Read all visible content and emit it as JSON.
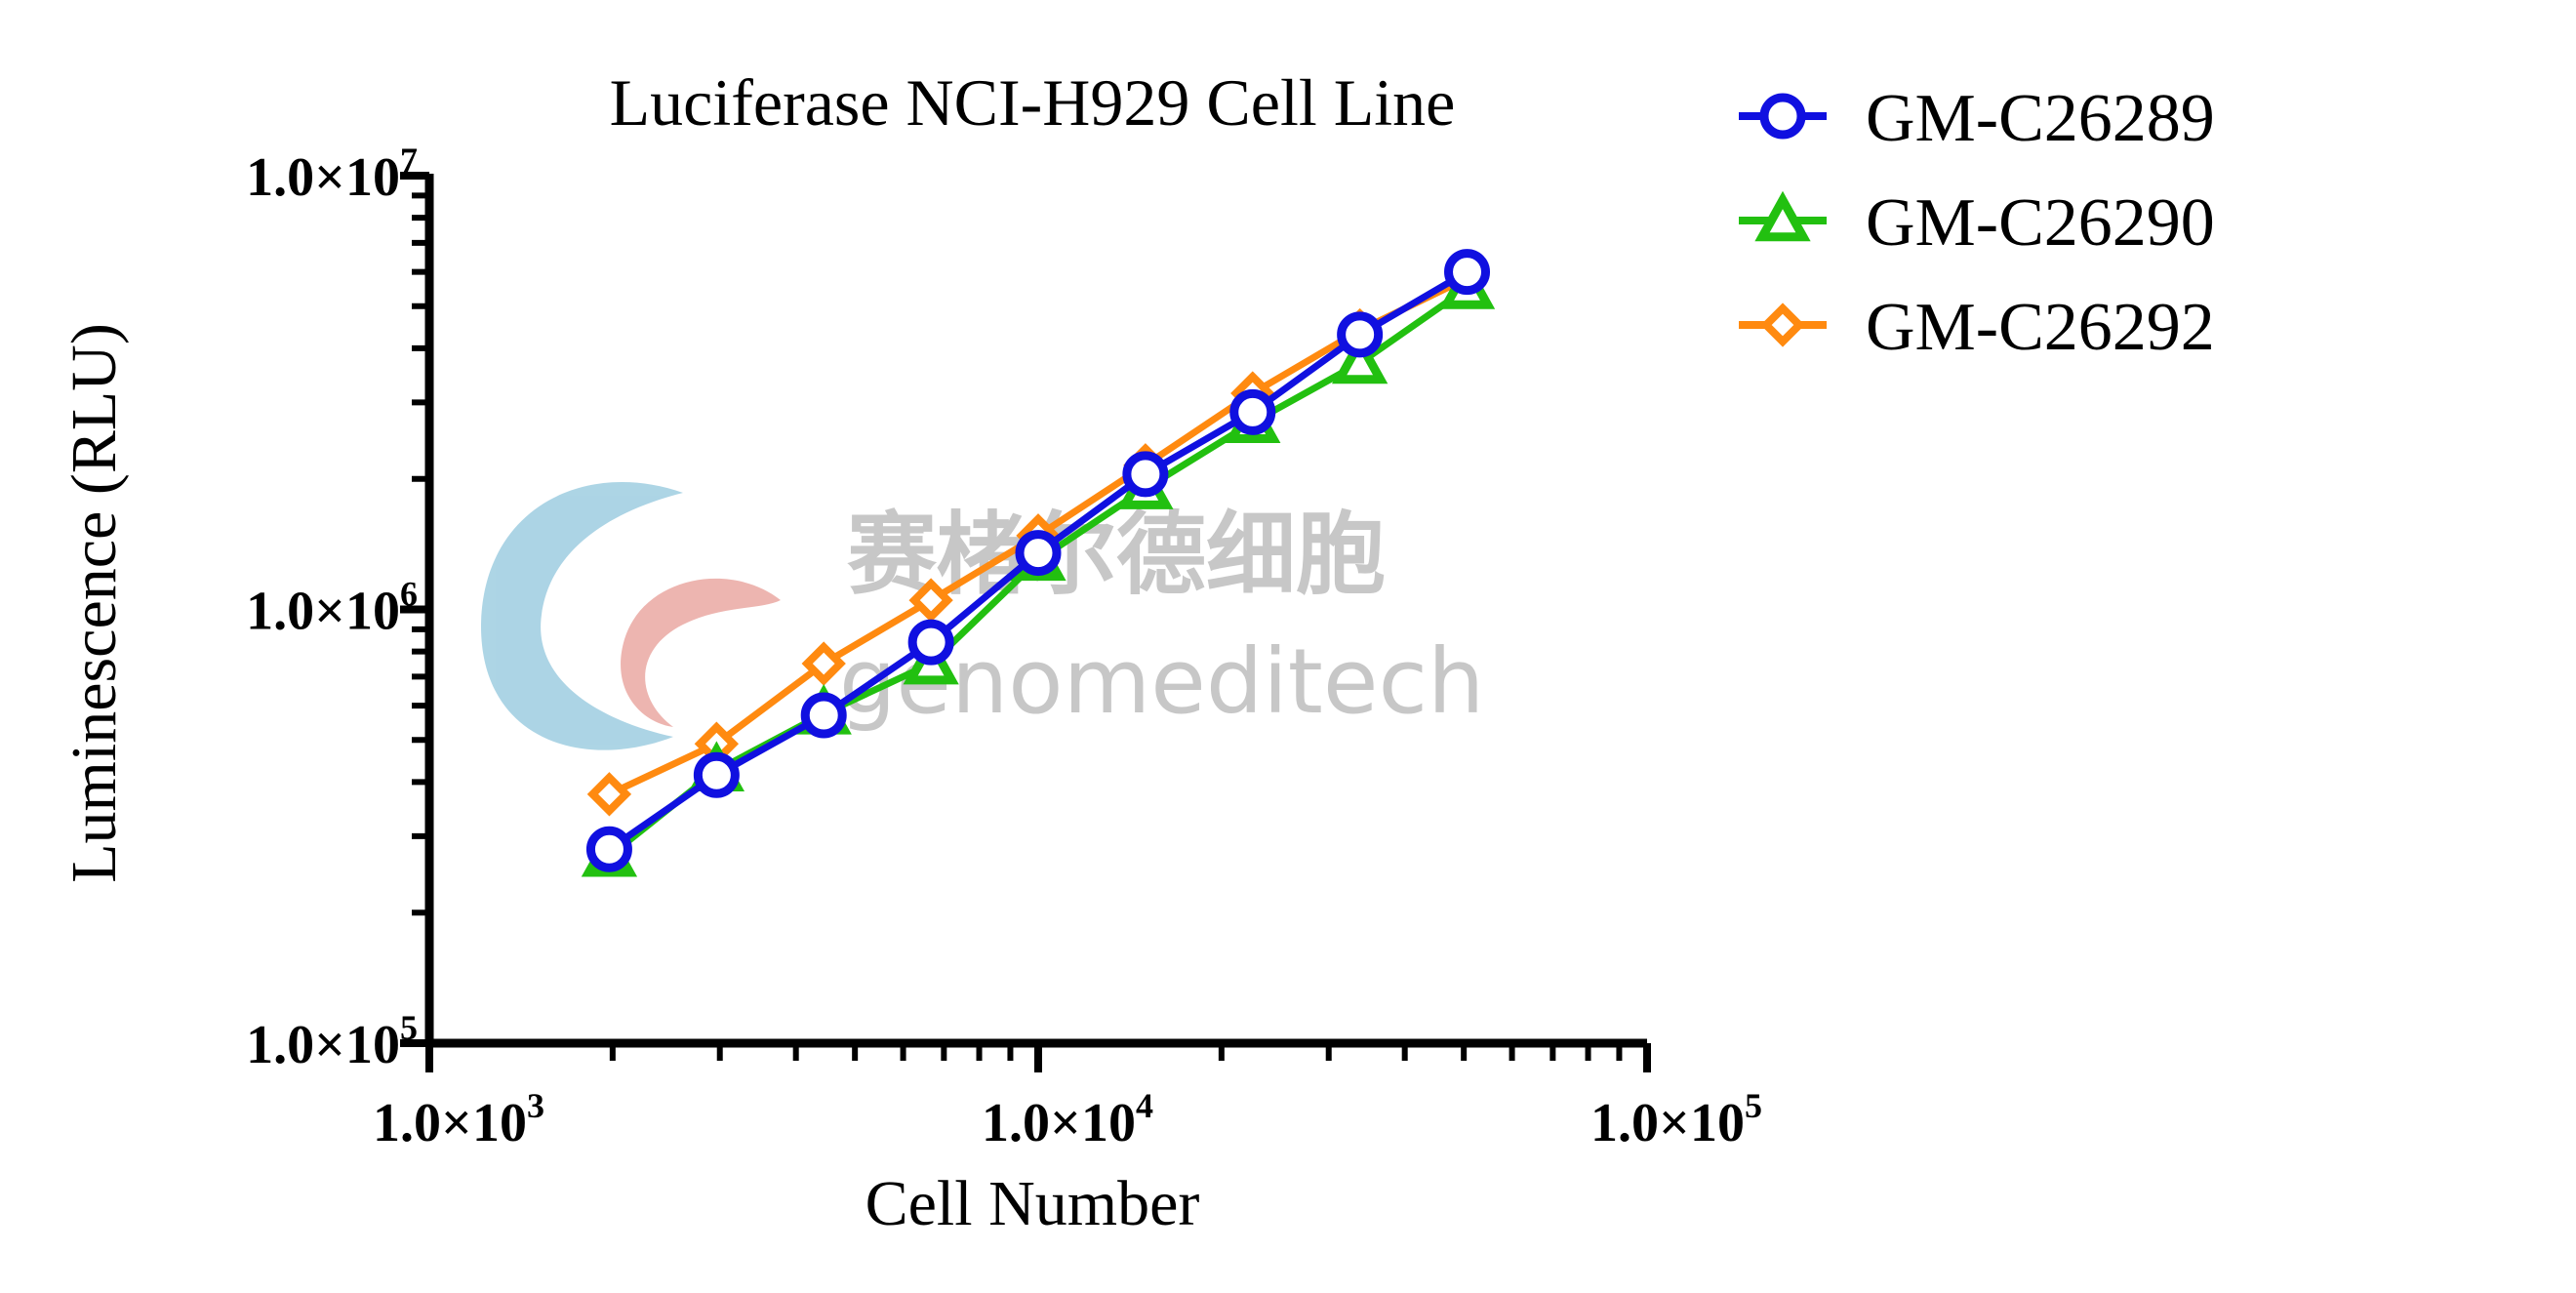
{
  "chart_data": {
    "type": "line",
    "title": "Luciferase NCI-H929 Cell Line",
    "xlabel": "Cell Number",
    "ylabel": "Luminescence (RLU)",
    "x_scale": "log",
    "y_scale": "log",
    "xlim": [
      1000,
      100000
    ],
    "ylim": [
      100000,
      10000000
    ],
    "x_ticks": [
      {
        "value": 1000,
        "mantissa": "1.0×10",
        "exp": "3"
      },
      {
        "value": 10000,
        "mantissa": "1.0×10",
        "exp": "4"
      },
      {
        "value": 100000,
        "mantissa": "1.0×10",
        "exp": "5"
      }
    ],
    "y_ticks": [
      {
        "value": 100000,
        "mantissa": "1.0×10",
        "exp": "5"
      },
      {
        "value": 1000000,
        "mantissa": "1.0×10",
        "exp": "6"
      },
      {
        "value": 10000000,
        "mantissa": "1.0×10",
        "exp": "7"
      }
    ],
    "x": [
      1975,
      2963,
      4444,
      6667,
      10000,
      15000,
      22500,
      33750,
      50625
    ],
    "series": [
      {
        "name": "GM-C26289",
        "color": "#1010e0",
        "marker": "circle",
        "values": [
          280000,
          415000,
          570000,
          840000,
          1350000,
          2050000,
          2850000,
          4300000,
          6000000
        ]
      },
      {
        "name": "GM-C26290",
        "color": "#22c010",
        "marker": "triangle",
        "values": [
          270000,
          425000,
          575000,
          750000,
          1300000,
          1900000,
          2700000,
          3700000,
          5500000
        ]
      },
      {
        "name": "GM-C26292",
        "color": "#ff8a10",
        "marker": "diamond",
        "values": [
          375000,
          490000,
          750000,
          1050000,
          1480000,
          2150000,
          3150000,
          4400000,
          5800000
        ]
      }
    ],
    "grid": false,
    "legend_position": "top-right outside plot"
  },
  "watermark": {
    "line1": "赛楮尔德细胞",
    "line2": "genomeditech",
    "colors": {
      "blue": "#6ab2d0",
      "red": "#e07a70",
      "gray": "#9a9a9a"
    }
  }
}
